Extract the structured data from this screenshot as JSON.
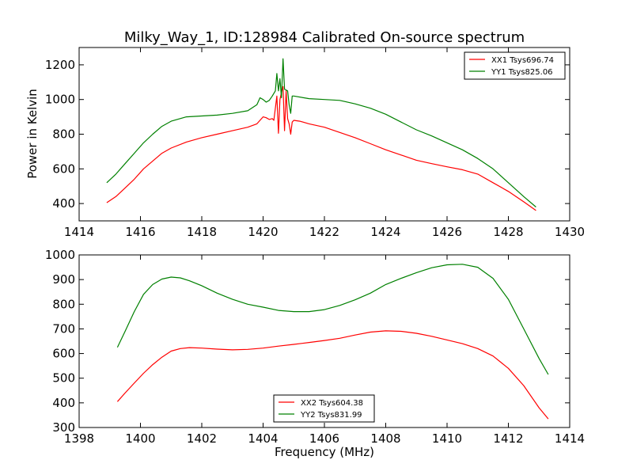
{
  "figure": {
    "title": "Milky_Way_1, ID:128984 Calibrated On-source spectrum",
    "xlabel": "Frequency (MHz)",
    "ylabel": "Power in Kelvin"
  },
  "chart_data": [
    {
      "type": "line",
      "title": "Milky_Way_1, ID:128984 Calibrated On-source spectrum",
      "ylabel": "Power in Kelvin",
      "xlim": [
        1414,
        1430
      ],
      "ylim": [
        300,
        1300
      ],
      "xticks": [
        1414,
        1416,
        1418,
        1420,
        1422,
        1424,
        1426,
        1428,
        1430
      ],
      "yticks": [
        400,
        600,
        800,
        1000,
        1200
      ],
      "legend_position": "top-right",
      "grid": false,
      "series": [
        {
          "name": "XX1 Tsys696.74",
          "color": "#ff0000",
          "points": [
            [
              1414.9,
              405
            ],
            [
              1415.2,
              440
            ],
            [
              1415.5,
              490
            ],
            [
              1415.8,
              540
            ],
            [
              1416.1,
              600
            ],
            [
              1416.4,
              645
            ],
            [
              1416.7,
              690
            ],
            [
              1417.0,
              720
            ],
            [
              1417.5,
              755
            ],
            [
              1418.0,
              780
            ],
            [
              1418.5,
              800
            ],
            [
              1419.0,
              820
            ],
            [
              1419.5,
              840
            ],
            [
              1419.8,
              860
            ],
            [
              1420.0,
              900
            ],
            [
              1420.1,
              895
            ],
            [
              1420.2,
              885
            ],
            [
              1420.3,
              890
            ],
            [
              1420.35,
              880
            ],
            [
              1420.45,
              1020
            ],
            [
              1420.5,
              805
            ],
            [
              1420.55,
              1000
            ],
            [
              1420.6,
              1040
            ],
            [
              1420.65,
              1075
            ],
            [
              1420.7,
              820
            ],
            [
              1420.75,
              1050
            ],
            [
              1420.8,
              890
            ],
            [
              1420.85,
              860
            ],
            [
              1420.9,
              800
            ],
            [
              1420.95,
              870
            ],
            [
              1421.0,
              880
            ],
            [
              1421.2,
              875
            ],
            [
              1421.5,
              860
            ],
            [
              1422.0,
              840
            ],
            [
              1422.5,
              810
            ],
            [
              1423.0,
              780
            ],
            [
              1423.5,
              745
            ],
            [
              1424.0,
              710
            ],
            [
              1424.5,
              680
            ],
            [
              1425.0,
              650
            ],
            [
              1425.5,
              630
            ],
            [
              1426.0,
              612
            ],
            [
              1426.5,
              595
            ],
            [
              1427.0,
              570
            ],
            [
              1427.5,
              520
            ],
            [
              1428.0,
              470
            ],
            [
              1428.5,
              410
            ],
            [
              1428.9,
              360
            ]
          ]
        },
        {
          "name": "YY1 Tsys825.06",
          "color": "#008000",
          "points": [
            [
              1414.9,
              520
            ],
            [
              1415.2,
              570
            ],
            [
              1415.5,
              630
            ],
            [
              1415.8,
              690
            ],
            [
              1416.1,
              750
            ],
            [
              1416.4,
              800
            ],
            [
              1416.7,
              845
            ],
            [
              1417.0,
              875
            ],
            [
              1417.5,
              900
            ],
            [
              1418.0,
              905
            ],
            [
              1418.5,
              910
            ],
            [
              1419.0,
              920
            ],
            [
              1419.5,
              935
            ],
            [
              1419.8,
              970
            ],
            [
              1419.9,
              1010
            ],
            [
              1420.0,
              1000
            ],
            [
              1420.1,
              985
            ],
            [
              1420.2,
              995
            ],
            [
              1420.3,
              1020
            ],
            [
              1420.4,
              1050
            ],
            [
              1420.45,
              1150
            ],
            [
              1420.5,
              1050
            ],
            [
              1420.55,
              1120
            ],
            [
              1420.6,
              1010
            ],
            [
              1420.65,
              1235
            ],
            [
              1420.7,
              1060
            ],
            [
              1420.8,
              1050
            ],
            [
              1420.85,
              970
            ],
            [
              1420.9,
              920
            ],
            [
              1420.95,
              1020
            ],
            [
              1421.0,
              1020
            ],
            [
              1421.5,
              1005
            ],
            [
              1422.0,
              1000
            ],
            [
              1422.5,
              995
            ],
            [
              1423.0,
              975
            ],
            [
              1423.5,
              950
            ],
            [
              1424.0,
              915
            ],
            [
              1424.5,
              870
            ],
            [
              1425.0,
              825
            ],
            [
              1425.5,
              790
            ],
            [
              1426.0,
              750
            ],
            [
              1426.5,
              710
            ],
            [
              1427.0,
              660
            ],
            [
              1427.5,
              600
            ],
            [
              1428.0,
              520
            ],
            [
              1428.5,
              440
            ],
            [
              1428.9,
              380
            ]
          ]
        }
      ]
    },
    {
      "type": "line",
      "xlabel": "Frequency (MHz)",
      "xlim": [
        1398,
        1414
      ],
      "ylim": [
        300,
        1000
      ],
      "xticks": [
        1398,
        1400,
        1402,
        1404,
        1406,
        1408,
        1410,
        1412,
        1414
      ],
      "yticks": [
        300,
        400,
        500,
        600,
        700,
        800,
        900,
        1000
      ],
      "legend_position": "bottom-center",
      "grid": false,
      "series": [
        {
          "name": "XX2 Tsys604.38",
          "color": "#ff0000",
          "points": [
            [
              1399.25,
              405
            ],
            [
              1399.5,
              440
            ],
            [
              1399.8,
              480
            ],
            [
              1400.1,
              520
            ],
            [
              1400.4,
              555
            ],
            [
              1400.7,
              585
            ],
            [
              1401.0,
              610
            ],
            [
              1401.3,
              620
            ],
            [
              1401.6,
              624
            ],
            [
              1402.0,
              622
            ],
            [
              1402.5,
              618
            ],
            [
              1403.0,
              615
            ],
            [
              1403.5,
              617
            ],
            [
              1404.0,
              622
            ],
            [
              1404.5,
              630
            ],
            [
              1405.0,
              637
            ],
            [
              1405.5,
              645
            ],
            [
              1406.0,
              653
            ],
            [
              1406.5,
              662
            ],
            [
              1407.0,
              675
            ],
            [
              1407.5,
              687
            ],
            [
              1408.0,
              692
            ],
            [
              1408.5,
              690
            ],
            [
              1409.0,
              682
            ],
            [
              1409.5,
              670
            ],
            [
              1410.0,
              655
            ],
            [
              1410.5,
              640
            ],
            [
              1411.0,
              620
            ],
            [
              1411.5,
              590
            ],
            [
              1412.0,
              540
            ],
            [
              1412.5,
              470
            ],
            [
              1413.0,
              380
            ],
            [
              1413.3,
              335
            ]
          ]
        },
        {
          "name": "YY2 Tsys831.99",
          "color": "#008000",
          "points": [
            [
              1399.25,
              625
            ],
            [
              1399.5,
              690
            ],
            [
              1399.8,
              770
            ],
            [
              1400.1,
              840
            ],
            [
              1400.4,
              880
            ],
            [
              1400.7,
              902
            ],
            [
              1401.0,
              910
            ],
            [
              1401.3,
              907
            ],
            [
              1401.6,
              895
            ],
            [
              1402.0,
              875
            ],
            [
              1402.5,
              845
            ],
            [
              1403.0,
              820
            ],
            [
              1403.5,
              800
            ],
            [
              1404.0,
              788
            ],
            [
              1404.5,
              775
            ],
            [
              1405.0,
              770
            ],
            [
              1405.5,
              770
            ],
            [
              1406.0,
              778
            ],
            [
              1406.5,
              795
            ],
            [
              1407.0,
              818
            ],
            [
              1407.5,
              845
            ],
            [
              1408.0,
              880
            ],
            [
              1408.5,
              905
            ],
            [
              1409.0,
              928
            ],
            [
              1409.5,
              948
            ],
            [
              1410.0,
              960
            ],
            [
              1410.5,
              962
            ],
            [
              1411.0,
              950
            ],
            [
              1411.5,
              905
            ],
            [
              1412.0,
              820
            ],
            [
              1412.5,
              700
            ],
            [
              1413.0,
              580
            ],
            [
              1413.3,
              515
            ]
          ]
        }
      ]
    }
  ]
}
